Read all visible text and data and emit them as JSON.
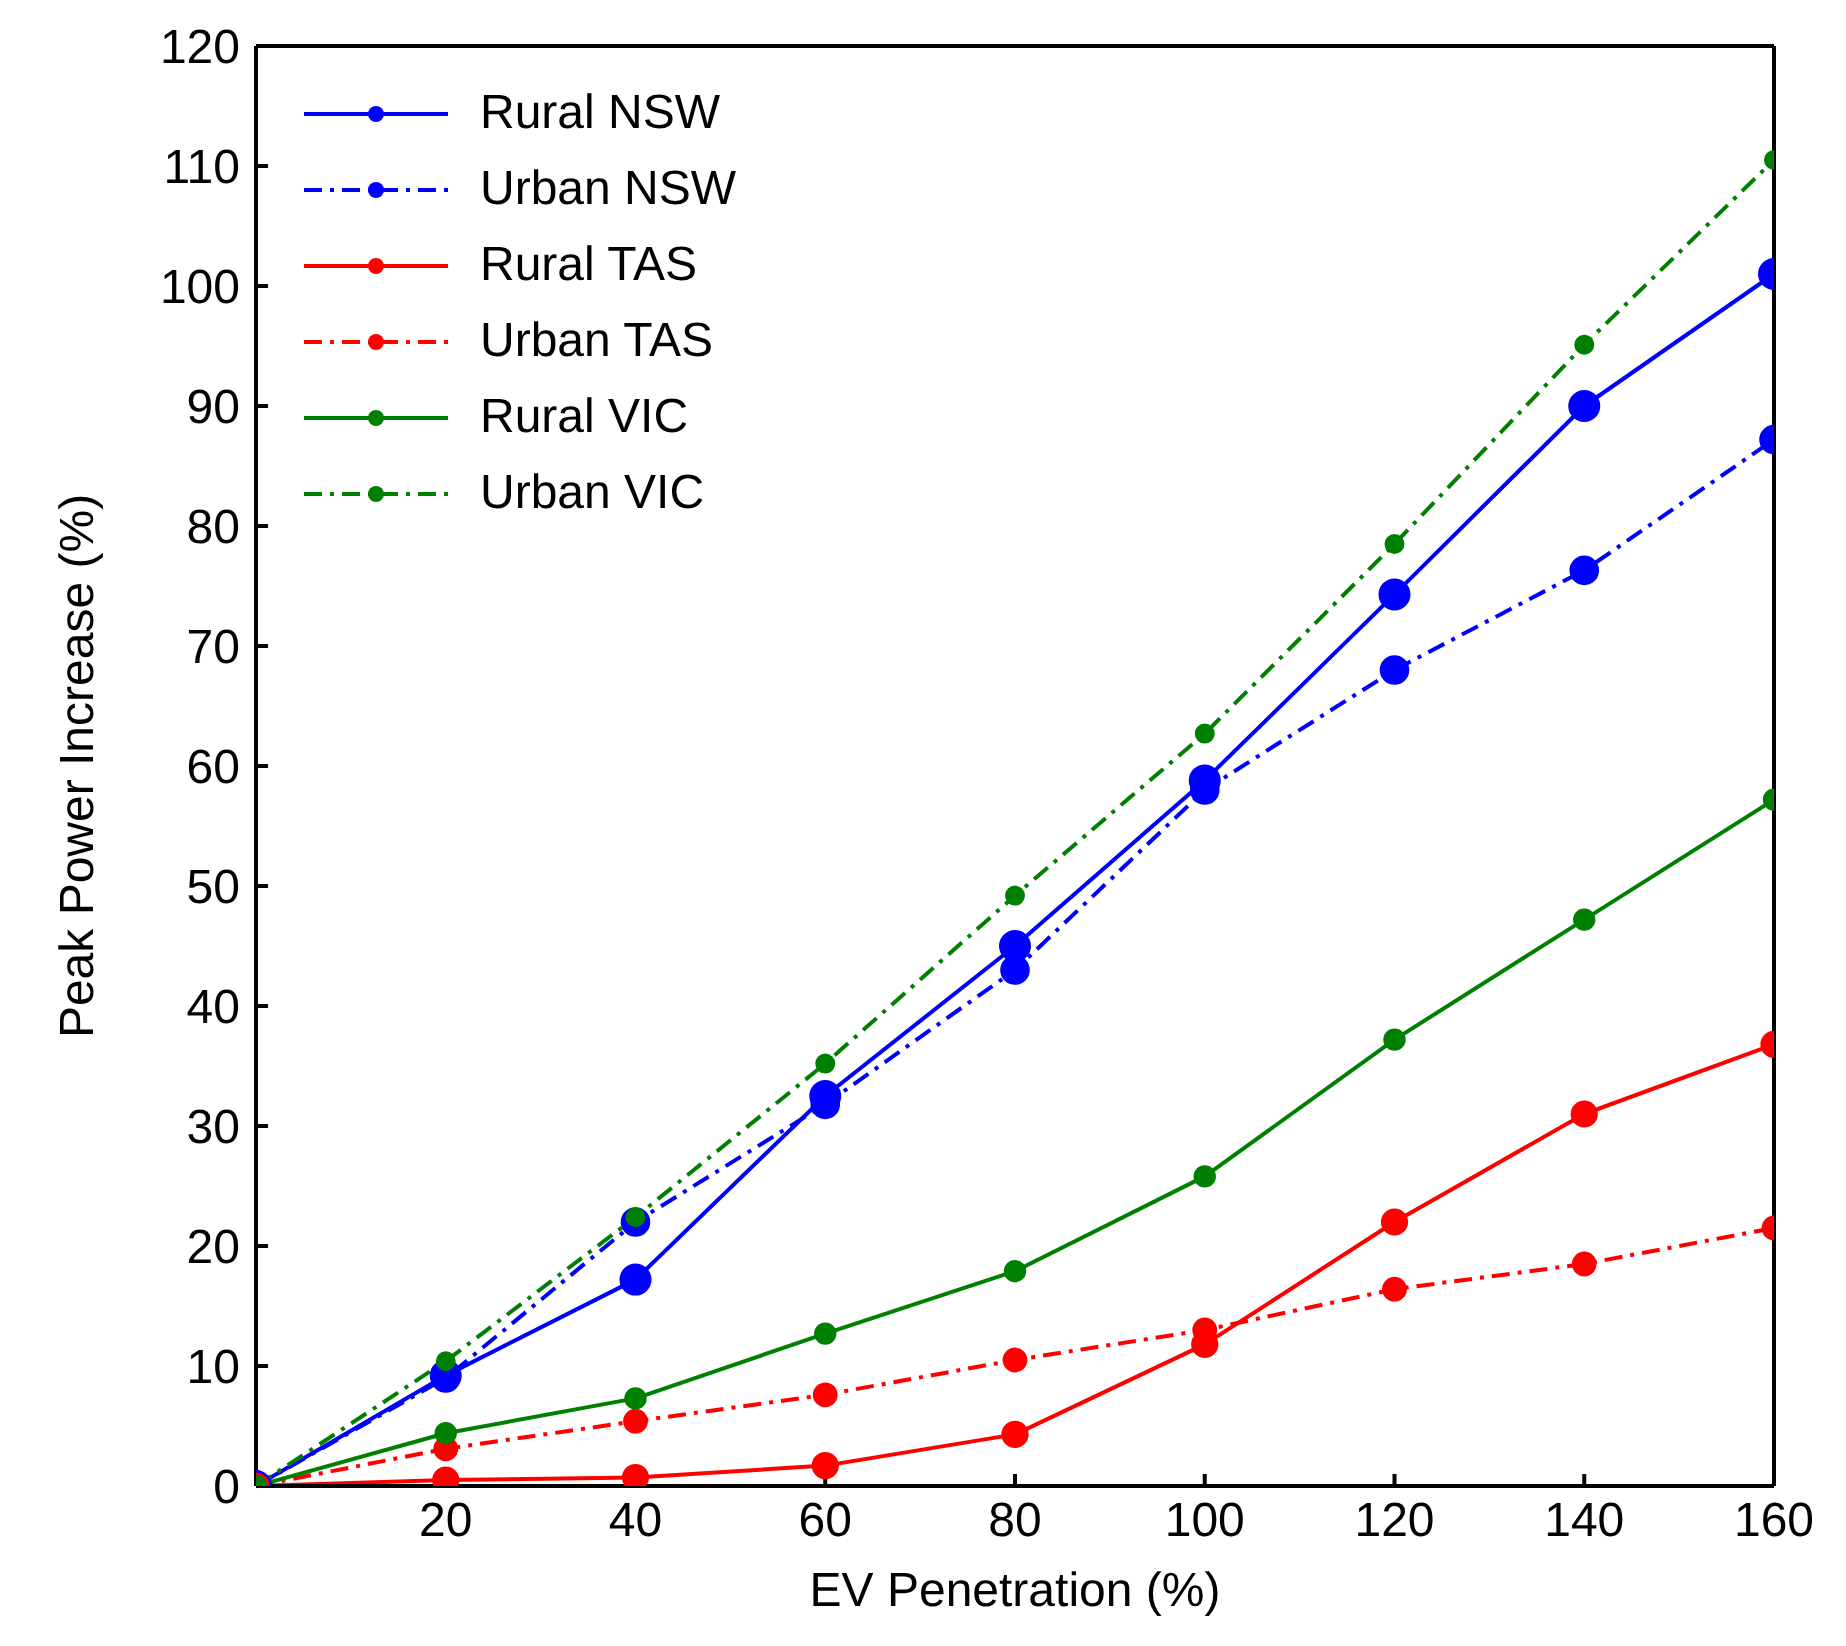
{
  "chart_data": {
    "type": "line",
    "xlabel": "EV Penetration (%)",
    "ylabel": "Peak Power Increase (%)",
    "x": [
      0,
      20,
      40,
      60,
      80,
      100,
      120,
      140,
      160
    ],
    "series": [
      {
        "name": "Rural NSW",
        "color": "#0000ff",
        "line_style": "solid",
        "values": [
          0,
          9.2,
          17.2,
          32.5,
          45,
          58.8,
          74.3,
          90,
          101
        ]
      },
      {
        "name": "Urban NSW",
        "color": "#0000ff",
        "line_style": "dashed",
        "values": [
          0,
          9,
          22,
          31.8,
          43,
          58,
          68,
          76.3,
          87.2
        ]
      },
      {
        "name": "Rural TAS",
        "color": "#ff0000",
        "line_style": "solid",
        "values": [
          0,
          0.5,
          0.7,
          1.7,
          4.3,
          11.8,
          22,
          31,
          36.8
        ]
      },
      {
        "name": "Urban TAS",
        "color": "#ff0000",
        "line_style": "dashed",
        "values": [
          0,
          3.1,
          5.4,
          7.6,
          10.5,
          13,
          16.4,
          18.5,
          21.5
        ]
      },
      {
        "name": "Rural VIC",
        "color": "#008000",
        "line_style": "solid",
        "values": [
          0,
          4.4,
          7.3,
          12.7,
          17.9,
          25.8,
          37.2,
          47.2,
          57.2
        ]
      },
      {
        "name": "Urban VIC",
        "color": "#008000",
        "line_style": "dashed",
        "values": [
          0,
          10.4,
          22.4,
          35.2,
          49.2,
          62.7,
          78.5,
          95.1,
          110.5
        ]
      }
    ],
    "xlim": [
      0,
      160
    ],
    "xticks": [
      20,
      40,
      60,
      80,
      100,
      120,
      140,
      160
    ],
    "ylim": [
      0,
      120
    ],
    "yticks": [
      0,
      10,
      20,
      30,
      40,
      50,
      60,
      70,
      80,
      90,
      100,
      110,
      120
    ],
    "grid": false,
    "legend": "top left",
    "marker": "circle"
  }
}
